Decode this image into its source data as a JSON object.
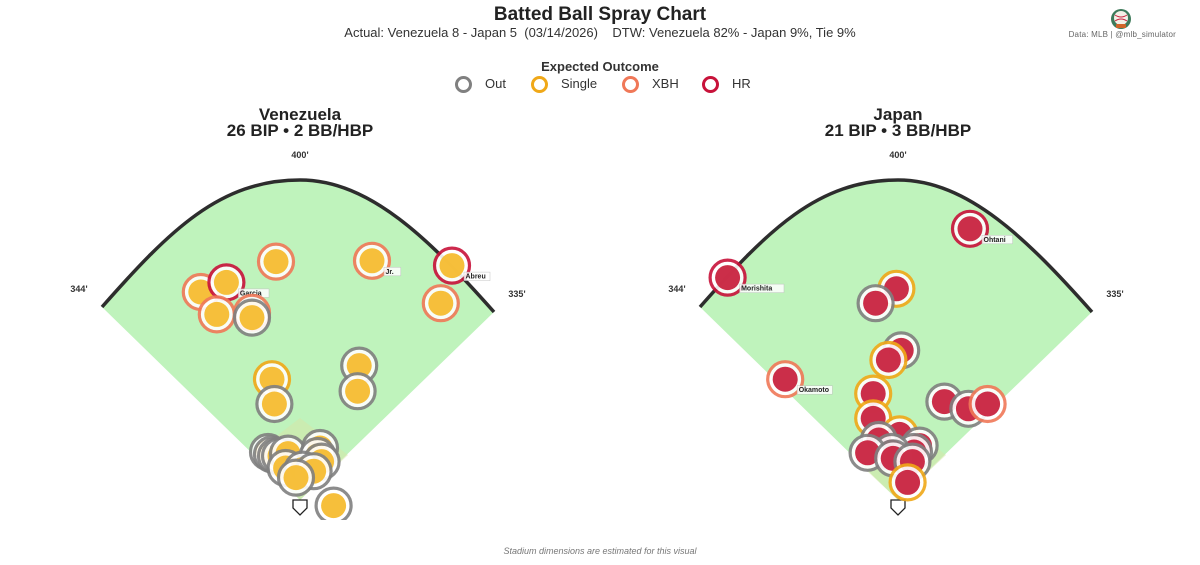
{
  "header": {
    "title": "Batted Ball Spray Chart",
    "subtitle": "Actual: Venezuela 8 - Japan 5  (03/14/2026)    DTW: Venezuela 82% - Japan 9%, Tie 9%",
    "credit": "Data: MLB  |  @mlb_simulator"
  },
  "legend": {
    "title": "Expected Outcome",
    "items": [
      {
        "label": "Out",
        "color": "#808080"
      },
      {
        "label": "Single",
        "color": "#f0a818"
      },
      {
        "label": "XBH",
        "color": "#f07858"
      },
      {
        "label": "HR",
        "color": "#c8123a"
      }
    ]
  },
  "footer": "Stadium dimensions are estimated for this visual",
  "chart_data": [
    {
      "type": "scatter",
      "title": "Venezuela",
      "subtitle": "26 BIP  •  2 BB/HBP",
      "fill_color": "#f5bc30",
      "distance_labels": {
        "left": "344'",
        "center": "400'",
        "right": "335'"
      },
      "points": [
        {
          "x": -124,
          "y": 260,
          "outcome": "XBH",
          "label": ""
        },
        {
          "x": -92,
          "y": 272,
          "outcome": "HR",
          "label": "Garcia"
        },
        {
          "x": -104,
          "y": 232,
          "outcome": "XBH",
          "label": ""
        },
        {
          "x": -60,
          "y": 234,
          "outcome": "XBH",
          "label": ""
        },
        {
          "x": -60,
          "y": 228,
          "outcome": "Out",
          "label": ""
        },
        {
          "x": -30,
          "y": 298,
          "outcome": "XBH",
          "label": ""
        },
        {
          "x": 90,
          "y": 299,
          "outcome": "XBH",
          "label": "Jr."
        },
        {
          "x": 190,
          "y": 293,
          "outcome": "HR",
          "label": "Abreu"
        },
        {
          "x": 176,
          "y": 246,
          "outcome": "XBH",
          "label": ""
        },
        {
          "x": 74,
          "y": 168,
          "outcome": "Out",
          "label": ""
        },
        {
          "x": 72,
          "y": 136,
          "outcome": "Out",
          "label": ""
        },
        {
          "x": -35,
          "y": 151,
          "outcome": "Single",
          "label": ""
        },
        {
          "x": -32,
          "y": 120,
          "outcome": "Out",
          "label": ""
        },
        {
          "x": -40,
          "y": 60,
          "outcome": "Out",
          "label": ""
        },
        {
          "x": -35,
          "y": 57,
          "outcome": "Out",
          "label": ""
        },
        {
          "x": -30,
          "y": 55,
          "outcome": "Out",
          "label": ""
        },
        {
          "x": -25,
          "y": 55,
          "outcome": "Out",
          "label": ""
        },
        {
          "x": -15,
          "y": 58,
          "outcome": "Out",
          "label": ""
        },
        {
          "x": 25,
          "y": 65,
          "outcome": "Out",
          "label": ""
        },
        {
          "x": 22,
          "y": 55,
          "outcome": "Out",
          "label": ""
        },
        {
          "x": 27,
          "y": 48,
          "outcome": "Out",
          "label": ""
        },
        {
          "x": -18,
          "y": 40,
          "outcome": "Out",
          "label": ""
        },
        {
          "x": 3,
          "y": 38,
          "outcome": "Out",
          "label": ""
        },
        {
          "x": 17,
          "y": 36,
          "outcome": "Out",
          "label": ""
        },
        {
          "x": -5,
          "y": 28,
          "outcome": "Out",
          "label": ""
        },
        {
          "x": 42,
          "y": -7,
          "outcome": "Out",
          "label": ""
        }
      ]
    },
    {
      "type": "scatter",
      "title": "Japan",
      "subtitle": "21 BIP  •  3 BB/HBP",
      "fill_color": "#c8233f",
      "distance_labels": {
        "left": "344'",
        "center": "400'",
        "right": "335'"
      },
      "points": [
        {
          "x": 90,
          "y": 339,
          "outcome": "HR",
          "label": "Ohtani"
        },
        {
          "x": -213,
          "y": 278,
          "outcome": "HR",
          "label": "Morishita"
        },
        {
          "x": -2,
          "y": 264,
          "outcome": "Single",
          "label": ""
        },
        {
          "x": -28,
          "y": 246,
          "outcome": "Out",
          "label": ""
        },
        {
          "x": 4,
          "y": 187,
          "outcome": "Out",
          "label": ""
        },
        {
          "x": -12,
          "y": 175,
          "outcome": "Single",
          "label": ""
        },
        {
          "x": -141,
          "y": 151,
          "outcome": "XBH",
          "label": "Okamoto"
        },
        {
          "x": -31,
          "y": 133,
          "outcome": "Single",
          "label": ""
        },
        {
          "x": -31,
          "y": 102,
          "outcome": "Single",
          "label": ""
        },
        {
          "x": 58,
          "y": 123,
          "outcome": "Out",
          "label": ""
        },
        {
          "x": 88,
          "y": 114,
          "outcome": "Out",
          "label": ""
        },
        {
          "x": 112,
          "y": 120,
          "outcome": "XBH",
          "label": ""
        },
        {
          "x": 2,
          "y": 82,
          "outcome": "Single",
          "label": ""
        },
        {
          "x": -24,
          "y": 75,
          "outcome": "Out",
          "label": ""
        },
        {
          "x": 27,
          "y": 68,
          "outcome": "Out",
          "label": ""
        },
        {
          "x": 20,
          "y": 60,
          "outcome": "Out",
          "label": ""
        },
        {
          "x": -8,
          "y": 60,
          "outcome": "Out",
          "label": ""
        },
        {
          "x": -38,
          "y": 59,
          "outcome": "Out",
          "label": ""
        },
        {
          "x": -6,
          "y": 52,
          "outcome": "Out",
          "label": ""
        },
        {
          "x": 18,
          "y": 48,
          "outcome": "Out",
          "label": ""
        },
        {
          "x": 12,
          "y": 22,
          "outcome": "Single",
          "label": ""
        }
      ]
    }
  ]
}
